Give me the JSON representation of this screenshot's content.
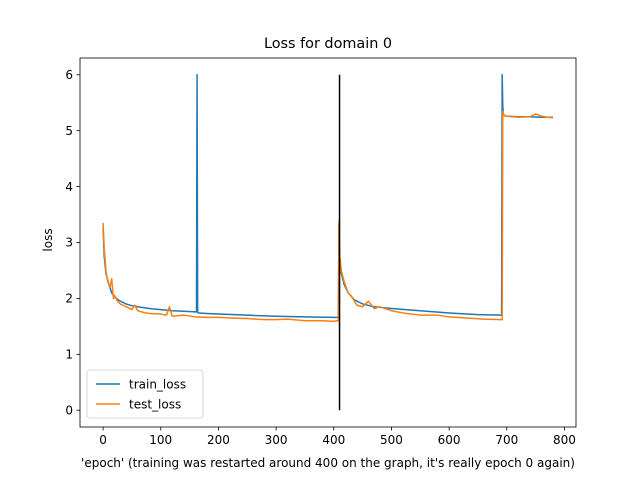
{
  "chart_data": {
    "type": "line",
    "title": "Loss for domain 0",
    "xlabel": "'epoch' (training was restarted around 400 on the graph, it's really epoch 0 again)",
    "ylabel": "loss",
    "xlim": [
      -40,
      820
    ],
    "ylim": [
      -0.3,
      6.3
    ],
    "xticks": [
      0,
      100,
      200,
      300,
      400,
      500,
      600,
      700,
      800
    ],
    "yticks": [
      0,
      1,
      2,
      3,
      4,
      5,
      6
    ],
    "grid": false,
    "legend": "lower-left",
    "series": [
      {
        "name": "train_loss",
        "color": "#1f77b4",
        "x": [
          0,
          2,
          5,
          10,
          15,
          20,
          30,
          40,
          50,
          60,
          80,
          100,
          120,
          140,
          160,
          162,
          163,
          164,
          166,
          180,
          200,
          250,
          300,
          350,
          400,
          405,
          408,
          409,
          410,
          413,
          418,
          425,
          435,
          450,
          470,
          500,
          550,
          600,
          650,
          690,
          691,
          692,
          693,
          694,
          696,
          700,
          720,
          740,
          760,
          780
        ],
        "y": [
          3.25,
          2.75,
          2.45,
          2.25,
          2.1,
          2.02,
          1.95,
          1.9,
          1.87,
          1.85,
          1.82,
          1.8,
          1.78,
          1.77,
          1.76,
          1.76,
          6.0,
          1.75,
          1.74,
          1.73,
          1.72,
          1.7,
          1.68,
          1.67,
          1.66,
          1.66,
          1.66,
          3.3,
          2.75,
          2.45,
          2.25,
          2.1,
          1.98,
          1.9,
          1.85,
          1.82,
          1.78,
          1.74,
          1.71,
          1.7,
          1.7,
          6.0,
          5.45,
          5.3,
          5.27,
          5.26,
          5.25,
          5.25,
          5.24,
          5.24
        ]
      },
      {
        "name": "test_loss",
        "color": "#ff7f0e",
        "x": [
          0,
          2,
          5,
          8,
          12,
          15,
          18,
          20,
          25,
          30,
          40,
          50,
          55,
          60,
          70,
          80,
          100,
          110,
          115,
          120,
          140,
          160,
          180,
          200,
          220,
          250,
          280,
          300,
          320,
          350,
          380,
          400,
          405,
          408,
          409,
          410,
          413,
          418,
          425,
          430,
          440,
          450,
          460,
          470,
          480,
          500,
          520,
          550,
          580,
          600,
          630,
          660,
          690,
          692,
          693,
          694,
          696,
          700,
          710,
          720,
          740,
          750,
          760,
          770,
          780
        ],
        "y": [
          3.35,
          2.9,
          2.5,
          2.3,
          2.2,
          2.35,
          2.0,
          2.05,
          1.95,
          1.9,
          1.85,
          1.8,
          1.88,
          1.78,
          1.75,
          1.73,
          1.72,
          1.7,
          1.85,
          1.68,
          1.7,
          1.67,
          1.66,
          1.66,
          1.65,
          1.64,
          1.62,
          1.62,
          1.63,
          1.6,
          1.6,
          1.59,
          1.6,
          1.6,
          3.38,
          2.8,
          2.5,
          2.3,
          2.1,
          2.05,
          1.88,
          1.85,
          1.95,
          1.82,
          1.85,
          1.78,
          1.74,
          1.7,
          1.7,
          1.67,
          1.65,
          1.63,
          1.62,
          1.62,
          5.35,
          5.3,
          5.27,
          5.26,
          5.25,
          5.24,
          5.25,
          5.3,
          5.26,
          5.24,
          5.23
        ]
      }
    ],
    "annotations": [
      {
        "type": "vline",
        "x": 410,
        "y0": 0,
        "y1": 6,
        "color": "#000000"
      }
    ]
  }
}
